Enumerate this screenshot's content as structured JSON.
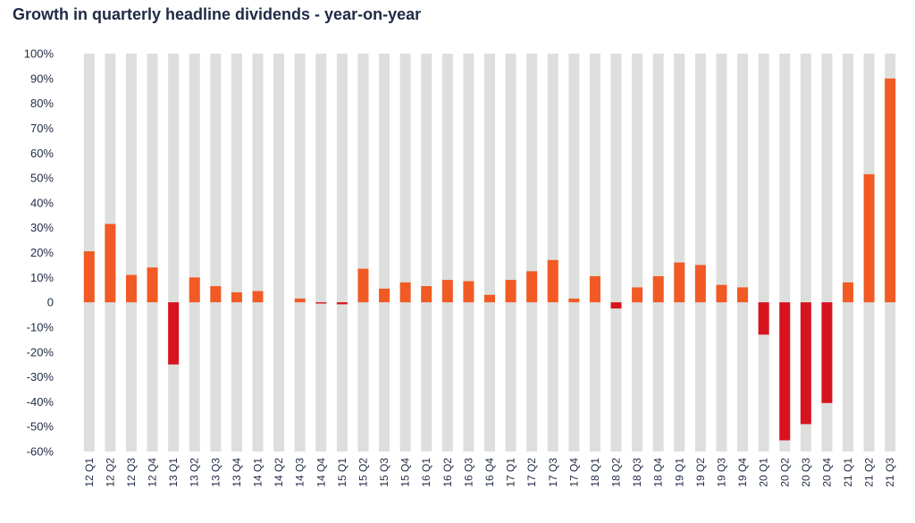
{
  "chart_data": {
    "type": "bar",
    "title": "Growth in quarterly headline dividends - year-on-year",
    "xlabel": "",
    "ylabel": "",
    "ylim": [
      -60,
      100
    ],
    "yticks": [
      100,
      90,
      80,
      70,
      60,
      50,
      40,
      30,
      20,
      10,
      0,
      -10,
      -20,
      -30,
      -40,
      -50,
      -60
    ],
    "ytick_labels": [
      "100%",
      "90%",
      "80%",
      "70%",
      "60%",
      "50%",
      "40%",
      "30%",
      "20%",
      "10%",
      "0",
      "-10%",
      "-20%",
      "-30%",
      "-40%",
      "-50%",
      "-60%"
    ],
    "categories": [
      "12 Q1",
      "12 Q2",
      "12 Q3",
      "12 Q4",
      "13 Q1",
      "13 Q2",
      "13 Q3",
      "13 Q4",
      "14 Q1",
      "14 Q2",
      "14 Q3",
      "14 Q4",
      "15 Q1",
      "15 Q2",
      "15 Q3",
      "15 Q4",
      "16 Q1",
      "16 Q2",
      "16 Q3",
      "16 Q4",
      "17 Q1",
      "17 Q2",
      "17 Q3",
      "17 Q4",
      "18 Q1",
      "18 Q2",
      "18 Q3",
      "18 Q4",
      "19 Q1",
      "19 Q2",
      "19 Q3",
      "19 Q4",
      "20 Q1",
      "20 Q2",
      "20 Q3",
      "20 Q4",
      "21 Q1",
      "21 Q2",
      "21 Q3"
    ],
    "values": [
      20.5,
      31.5,
      11,
      14,
      -25,
      10,
      6.5,
      4,
      4.5,
      0,
      1.5,
      -0.5,
      -0.8,
      13.5,
      5.5,
      8,
      6.5,
      9,
      8.5,
      3,
      9,
      12.5,
      17,
      1.5,
      10.5,
      -2.5,
      6,
      10.5,
      16,
      15,
      7,
      6,
      -13,
      -55.5,
      -49,
      -40.5,
      8,
      51.5,
      90
    ],
    "background_bar_range": [
      -60,
      100
    ],
    "grid": false,
    "legend": "none",
    "colors": {
      "positive": "#f15a24",
      "negative": "#d7141d",
      "background_bar": "#dcdfdc",
      "text": "#1f2a44"
    }
  }
}
